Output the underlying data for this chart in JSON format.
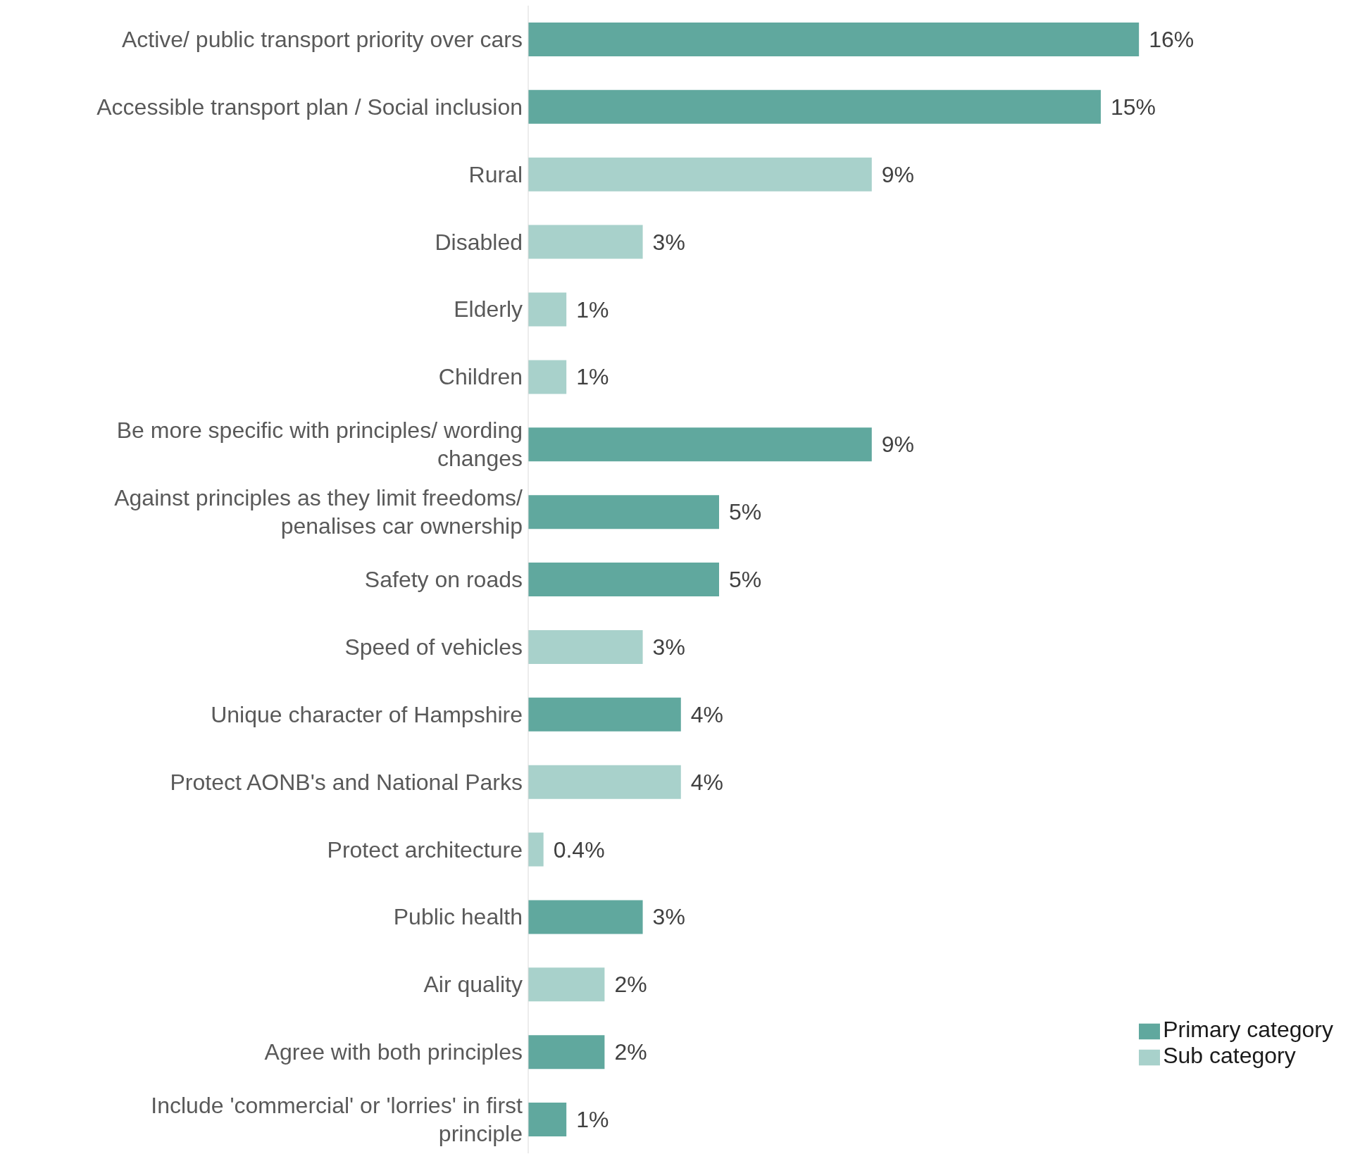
{
  "chart_data": {
    "type": "bar",
    "orientation": "horizontal",
    "stacked": true,
    "legend": "bottom right",
    "categories": [
      "Active/ public transport priority over cars",
      "Accessible transport plan / Social inclusion",
      "Rural",
      "Disabled",
      "Elderly",
      "Children",
      "Be more specific with principles/ wording changes",
      "Against principles as they limit freedoms/ penalises car ownership",
      "Safety on roads",
      "Speed of vehicles",
      "Unique character of Hampshire",
      "Protect AONB's and National Parks",
      "Protect architecture",
      "Public health",
      "Air quality",
      "Agree with both principles",
      "Include 'commercial' or 'lorries' in first principle"
    ],
    "series": [
      {
        "name": "Primary category",
        "color": "#60a89e",
        "values": [
          16,
          15,
          null,
          null,
          null,
          null,
          9,
          5,
          5,
          null,
          4,
          null,
          null,
          3,
          null,
          2,
          1
        ],
        "value_labels": [
          "16%",
          "15%",
          null,
          null,
          null,
          null,
          "9%",
          "5%",
          "5%",
          null,
          "4%",
          null,
          null,
          "3%",
          null,
          "2%",
          "1%"
        ]
      },
      {
        "name": "Sub category",
        "color": "#a8d1cb",
        "values": [
          null,
          null,
          9,
          3,
          1,
          1,
          null,
          null,
          null,
          3,
          null,
          4,
          0.4,
          null,
          2,
          null,
          null
        ],
        "value_labels": [
          null,
          null,
          "9%",
          "3%",
          "1%",
          "1%",
          null,
          null,
          null,
          "3%",
          null,
          "4%",
          "0.4%",
          null,
          "2%",
          null,
          null
        ]
      }
    ]
  }
}
